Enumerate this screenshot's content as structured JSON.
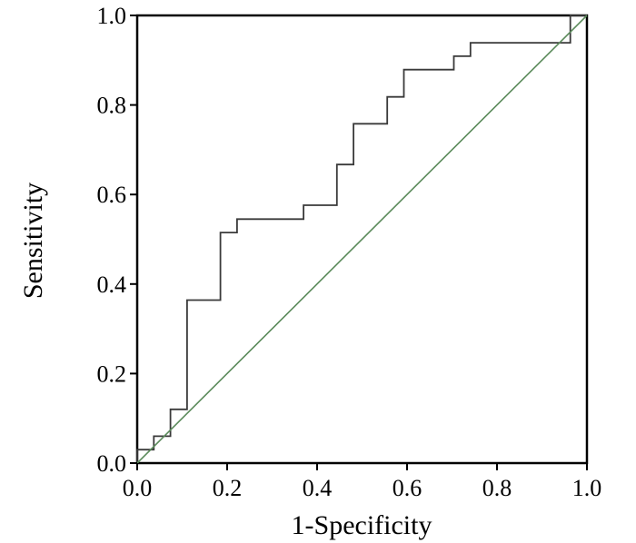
{
  "chart_data": {
    "type": "line",
    "xlabel": "1-Specificity",
    "ylabel": "Sensitivity",
    "xlim": [
      0.0,
      1.0
    ],
    "ylim": [
      0.0,
      1.0
    ],
    "x_ticks": [
      "0.0",
      "0.2",
      "0.4",
      "0.6",
      "0.8",
      "1.0"
    ],
    "y_ticks": [
      "0.0",
      "0.2",
      "0.4",
      "0.6",
      "0.8",
      "1.0"
    ],
    "grid": false,
    "series": [
      {
        "style": "step",
        "color": "#3a3a3a",
        "points": [
          [
            0.0,
            0.0
          ],
          [
            0.0,
            0.03
          ],
          [
            0.037,
            0.03
          ],
          [
            0.037,
            0.06
          ],
          [
            0.074,
            0.06
          ],
          [
            0.074,
            0.12
          ],
          [
            0.111,
            0.12
          ],
          [
            0.111,
            0.364
          ],
          [
            0.185,
            0.364
          ],
          [
            0.185,
            0.515
          ],
          [
            0.222,
            0.515
          ],
          [
            0.222,
            0.545
          ],
          [
            0.37,
            0.545
          ],
          [
            0.37,
            0.576
          ],
          [
            0.444,
            0.576
          ],
          [
            0.444,
            0.667
          ],
          [
            0.481,
            0.667
          ],
          [
            0.481,
            0.758
          ],
          [
            0.556,
            0.758
          ],
          [
            0.556,
            0.818
          ],
          [
            0.593,
            0.818
          ],
          [
            0.593,
            0.879
          ],
          [
            0.704,
            0.879
          ],
          [
            0.704,
            0.909
          ],
          [
            0.741,
            0.909
          ],
          [
            0.741,
            0.939
          ],
          [
            0.963,
            0.939
          ],
          [
            0.963,
            1.0
          ],
          [
            1.0,
            1.0
          ]
        ]
      },
      {
        "style": "line",
        "color": "#5a8a5a",
        "points": [
          [
            0.0,
            0.0
          ],
          [
            1.0,
            1.0
          ]
        ]
      }
    ]
  }
}
